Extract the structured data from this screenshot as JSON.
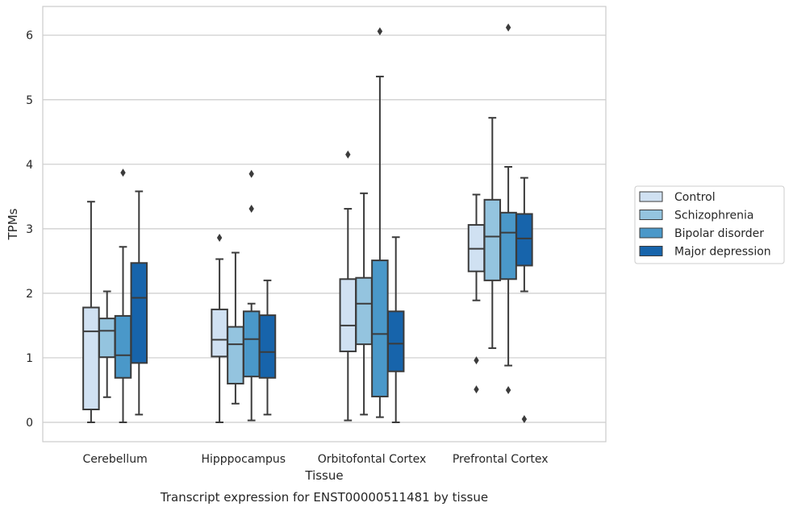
{
  "chart_data": {
    "type": "box",
    "xlabel": "Tissue",
    "ylabel": "TPMs",
    "caption": "Transcript expression for ENST00000511481 by tissue",
    "ylim": [
      -0.3,
      6.45
    ],
    "yticks": [
      0,
      1,
      2,
      3,
      4,
      5,
      6
    ],
    "grid": "horizontal",
    "legend_placement": "right",
    "categories": [
      "Cerebellum",
      "Hipppocampus",
      "Orbitofontal Cortex",
      "Prefrontal Cortex"
    ],
    "series": [
      {
        "name": "Control",
        "color": "#d0e1f2",
        "boxes": [
          {
            "whislo": 0.0,
            "q1": 0.2,
            "med": 1.41,
            "q3": 1.78,
            "whishi": 3.42,
            "fliers": []
          },
          {
            "whislo": 0.0,
            "q1": 1.02,
            "med": 1.28,
            "q3": 1.75,
            "whishi": 2.53,
            "fliers": [
              2.86
            ]
          },
          {
            "whislo": 0.03,
            "q1": 1.1,
            "med": 1.5,
            "q3": 2.22,
            "whishi": 3.31,
            "fliers": [
              4.15
            ]
          },
          {
            "whislo": 1.89,
            "q1": 2.34,
            "med": 2.69,
            "q3": 3.06,
            "whishi": 3.53,
            "fliers": [
              0.96,
              0.51
            ]
          }
        ]
      },
      {
        "name": "Schizophrenia",
        "color": "#94c4df",
        "boxes": [
          {
            "whislo": 0.39,
            "q1": 1.01,
            "med": 1.42,
            "q3": 1.61,
            "whishi": 2.03,
            "fliers": []
          },
          {
            "whislo": 0.29,
            "q1": 0.6,
            "med": 1.21,
            "q3": 1.48,
            "whishi": 2.63,
            "fliers": []
          },
          {
            "whislo": 0.12,
            "q1": 1.21,
            "med": 1.84,
            "q3": 2.24,
            "whishi": 3.55,
            "fliers": []
          },
          {
            "whislo": 1.15,
            "q1": 2.2,
            "med": 2.88,
            "q3": 3.45,
            "whishi": 4.72,
            "fliers": []
          }
        ]
      },
      {
        "name": "Bipolar disorder",
        "color": "#4a98c9",
        "boxes": [
          {
            "whislo": 0.0,
            "q1": 0.69,
            "med": 1.04,
            "q3": 1.65,
            "whishi": 2.72,
            "fliers": [
              3.87
            ]
          },
          {
            "whislo": 0.03,
            "q1": 0.71,
            "med": 1.29,
            "q3": 1.72,
            "whishi": 1.84,
            "fliers": [
              3.85,
              3.31
            ]
          },
          {
            "whislo": 0.08,
            "q1": 0.4,
            "med": 1.37,
            "q3": 2.51,
            "whishi": 5.36,
            "fliers": [
              6.06
            ]
          },
          {
            "whislo": 0.88,
            "q1": 2.22,
            "med": 2.94,
            "q3": 3.25,
            "whishi": 3.96,
            "fliers": [
              6.12,
              0.5
            ]
          }
        ]
      },
      {
        "name": "Major depression",
        "color": "#1764ab",
        "boxes": [
          {
            "whislo": 0.12,
            "q1": 0.92,
            "med": 1.93,
            "q3": 2.47,
            "whishi": 3.58,
            "fliers": []
          },
          {
            "whislo": 0.12,
            "q1": 0.69,
            "med": 1.09,
            "q3": 1.66,
            "whishi": 2.2,
            "fliers": []
          },
          {
            "whislo": 0.0,
            "q1": 0.79,
            "med": 1.22,
            "q3": 1.72,
            "whishi": 2.87,
            "fliers": []
          },
          {
            "whislo": 2.03,
            "q1": 2.43,
            "med": 2.85,
            "q3": 3.23,
            "whishi": 3.79,
            "fliers": [
              0.05
            ]
          }
        ]
      }
    ]
  }
}
